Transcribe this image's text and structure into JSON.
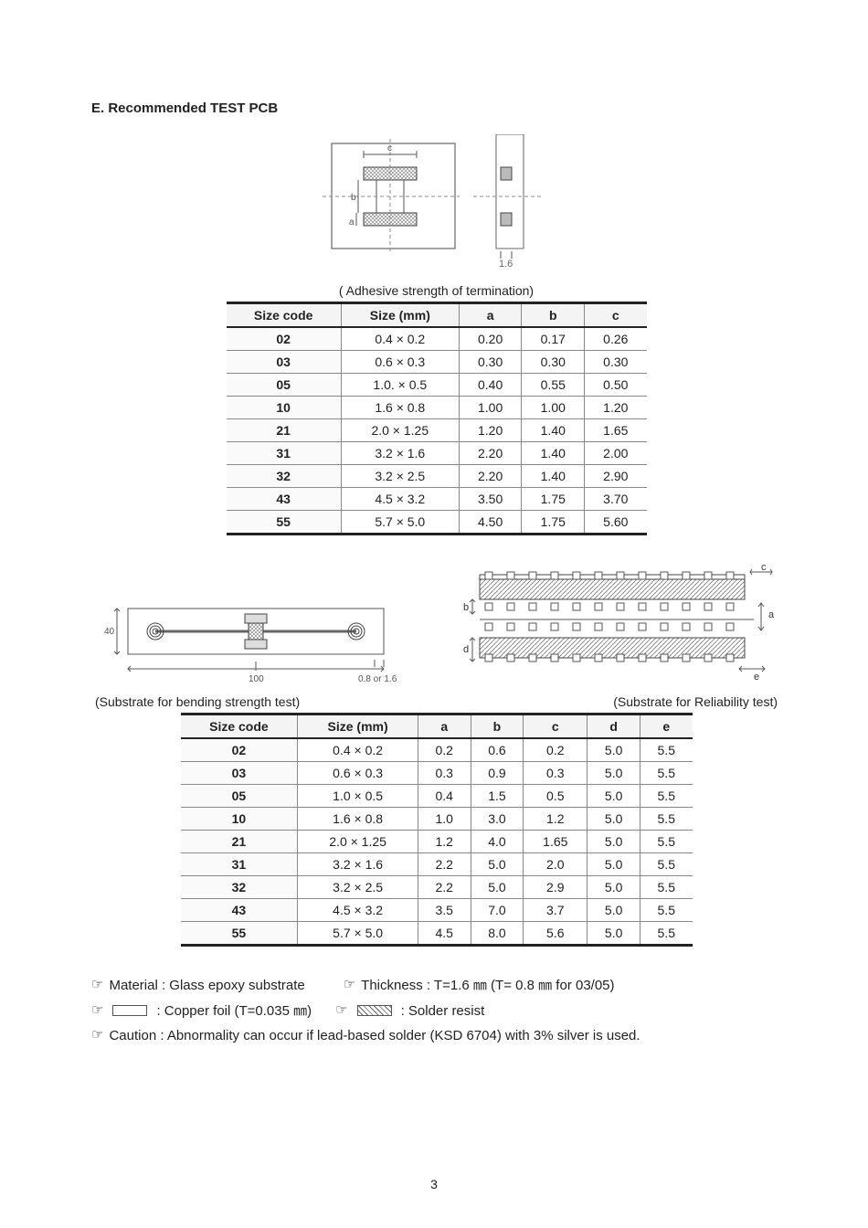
{
  "section_title": "E. Recommended TEST PCB",
  "diagram1_bottom_label": "1.6",
  "caption1": "( Adhesive strength of termination)",
  "table1": {
    "headers": [
      "Size code",
      "Size (mm)",
      "a",
      "b",
      "c"
    ],
    "rows": [
      [
        "02",
        "0.4 × 0.2",
        "0.20",
        "0.17",
        "0.26"
      ],
      [
        "03",
        "0.6 × 0.3",
        "0.30",
        "0.30",
        "0.30"
      ],
      [
        "05",
        "1.0. × 0.5",
        "0.40",
        "0.55",
        "0.50"
      ],
      [
        "10",
        "1.6 × 0.8",
        "1.00",
        "1.00",
        "1.20"
      ],
      [
        "21",
        "2.0 × 1.25",
        "1.20",
        "1.40",
        "1.65"
      ],
      [
        "31",
        "3.2 × 1.6",
        "2.20",
        "1.40",
        "2.00"
      ],
      [
        "32",
        "3.2 × 2.5",
        "2.20",
        "1.40",
        "2.90"
      ],
      [
        "43",
        "4.5 × 3.2",
        "3.50",
        "1.75",
        "3.70"
      ],
      [
        "55",
        "5.7 × 5.0",
        "4.50",
        "1.75",
        "5.60"
      ]
    ]
  },
  "diag_left_caption": "(Substrate for bending strength test)",
  "diag_left_dim_40": "40",
  "diag_left_dim_100": "100",
  "diag_left_dim_t": "0.8 or 1.6",
  "diag_right_caption": "(Substrate for Reliability test)",
  "diag_right_labels": {
    "a": "a",
    "b": "b",
    "c": "c",
    "d": "d",
    "e": "e"
  },
  "table2": {
    "headers": [
      "Size code",
      "Size (mm)",
      "a",
      "b",
      "c",
      "d",
      "e"
    ],
    "rows": [
      [
        "02",
        "0.4 × 0.2",
        "0.2",
        "0.6",
        "0.2",
        "5.0",
        "5.5"
      ],
      [
        "03",
        "0.6 × 0.3",
        "0.3",
        "0.9",
        "0.3",
        "5.0",
        "5.5"
      ],
      [
        "05",
        "1.0 × 0.5",
        "0.4",
        "1.5",
        "0.5",
        "5.0",
        "5.5"
      ],
      [
        "10",
        "1.6 × 0.8",
        "1.0",
        "3.0",
        "1.2",
        "5.0",
        "5.5"
      ],
      [
        "21",
        "2.0 × 1.25",
        "1.2",
        "4.0",
        "1.65",
        "5.0",
        "5.5"
      ],
      [
        "31",
        "3.2 × 1.6",
        "2.2",
        "5.0",
        "2.0",
        "5.0",
        "5.5"
      ],
      [
        "32",
        "3.2 × 2.5",
        "2.2",
        "5.0",
        "2.9",
        "5.0",
        "5.5"
      ],
      [
        "43",
        "4.5 × 3.2",
        "3.5",
        "7.0",
        "3.7",
        "5.0",
        "5.5"
      ],
      [
        "55",
        "5.7 × 5.0",
        "4.5",
        "8.0",
        "5.6",
        "5.0",
        "5.5"
      ]
    ]
  },
  "legend": {
    "material": "Material : Glass epoxy substrate",
    "thickness": "Thickness : T=1.6 ㎜ (T= 0.8 ㎜ for 03/05)",
    "copper": ": Copper foil (T=0.035 ㎜)",
    "solder": ": Solder resist",
    "caution": "Caution : Abnormality can occur if lead-based solder (KSD 6704) with 3% silver is used."
  },
  "page_number": "3",
  "colors": {
    "text": "#222222",
    "border": "#888888",
    "heavy_border": "#222222",
    "header_bg": "#f4f4f4"
  }
}
